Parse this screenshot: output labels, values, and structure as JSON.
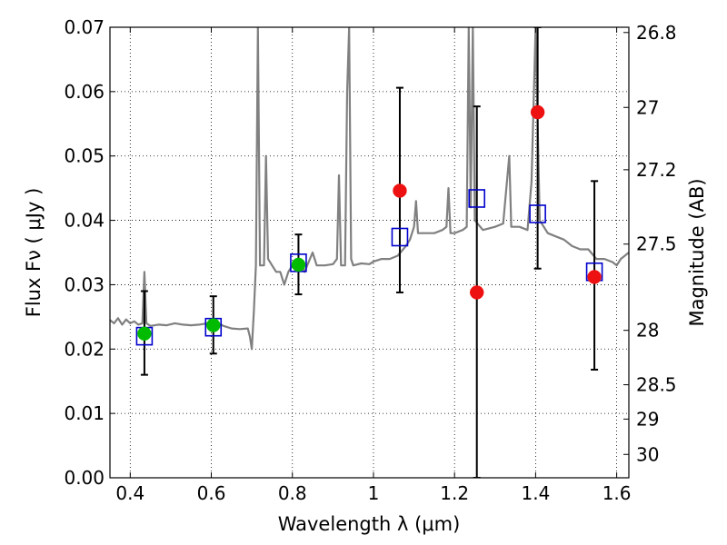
{
  "chart_data": {
    "type": "scatter",
    "title": "",
    "xlabel": "Wavelength  λ (μm)",
    "ylabel": "Flux  Fν  ( μJy )",
    "y2label": "Magnitude (AB)",
    "xlim": [
      0.35,
      1.63
    ],
    "ylim": [
      0.0,
      0.07
    ],
    "grid": true,
    "x_ticks": [
      {
        "value": 0.4,
        "label": "0.4"
      },
      {
        "value": 0.6,
        "label": "0.6"
      },
      {
        "value": 0.8,
        "label": "0.8"
      },
      {
        "value": 1.0,
        "label": "1"
      },
      {
        "value": 1.2,
        "label": "1.2"
      },
      {
        "value": 1.4,
        "label": "1.4"
      },
      {
        "value": 1.6,
        "label": "1.6"
      }
    ],
    "y_ticks": [
      {
        "value": 0.0,
        "label": "0.00"
      },
      {
        "value": 0.01,
        "label": "0.01"
      },
      {
        "value": 0.02,
        "label": "0.02"
      },
      {
        "value": 0.03,
        "label": "0.03"
      },
      {
        "value": 0.04,
        "label": "0.04"
      },
      {
        "value": 0.05,
        "label": "0.05"
      },
      {
        "value": 0.06,
        "label": "0.06"
      },
      {
        "value": 0.07,
        "label": "0.07"
      }
    ],
    "y2_ticks": [
      {
        "value": 26.8,
        "label": "26.8"
      },
      {
        "value": 27.0,
        "label": "27"
      },
      {
        "value": 27.2,
        "label": "27.2"
      },
      {
        "value": 27.5,
        "label": "27.5"
      },
      {
        "value": 28.0,
        "label": "28"
      },
      {
        "value": 28.5,
        "label": "28.5"
      },
      {
        "value": 29.0,
        "label": "29"
      },
      {
        "value": 30.0,
        "label": "30"
      }
    ],
    "series": [
      {
        "kind": "line",
        "color": "#808080",
        "points": [
          [
            0.35,
            0.0245
          ],
          [
            0.36,
            0.024
          ],
          [
            0.37,
            0.0248
          ],
          [
            0.38,
            0.0238
          ],
          [
            0.39,
            0.0246
          ],
          [
            0.4,
            0.024
          ],
          [
            0.41,
            0.0243
          ],
          [
            0.42,
            0.0238
          ],
          [
            0.43,
            0.024
          ],
          [
            0.435,
            0.032
          ],
          [
            0.44,
            0.024
          ],
          [
            0.45,
            0.0236
          ],
          [
            0.47,
            0.0238
          ],
          [
            0.49,
            0.0237
          ],
          [
            0.51,
            0.024
          ],
          [
            0.53,
            0.0238
          ],
          [
            0.55,
            0.0237
          ],
          [
            0.57,
            0.0238
          ],
          [
            0.59,
            0.024
          ],
          [
            0.61,
            0.0242
          ],
          [
            0.63,
            0.0236
          ],
          [
            0.65,
            0.0232
          ],
          [
            0.67,
            0.0231
          ],
          [
            0.69,
            0.0232
          ],
          [
            0.695,
            0.022
          ],
          [
            0.7,
            0.02
          ],
          [
            0.705,
            0.026
          ],
          [
            0.71,
            0.033
          ],
          [
            0.715,
            0.07
          ],
          [
            0.72,
            0.033
          ],
          [
            0.73,
            0.033
          ],
          [
            0.735,
            0.05
          ],
          [
            0.74,
            0.034
          ],
          [
            0.75,
            0.033
          ],
          [
            0.76,
            0.032
          ],
          [
            0.77,
            0.032
          ],
          [
            0.78,
            0.03
          ],
          [
            0.79,
            0.032
          ],
          [
            0.8,
            0.033
          ],
          [
            0.81,
            0.0333
          ],
          [
            0.82,
            0.0335
          ],
          [
            0.83,
            0.032
          ],
          [
            0.84,
            0.0335
          ],
          [
            0.85,
            0.035
          ],
          [
            0.86,
            0.033
          ],
          [
            0.88,
            0.033
          ],
          [
            0.9,
            0.0332
          ],
          [
            0.91,
            0.034
          ],
          [
            0.915,
            0.047
          ],
          [
            0.92,
            0.033
          ],
          [
            0.93,
            0.033
          ],
          [
            0.935,
            0.06
          ],
          [
            0.94,
            0.07
          ],
          [
            0.945,
            0.034
          ],
          [
            0.95,
            0.033
          ],
          [
            0.97,
            0.0333
          ],
          [
            0.99,
            0.0332
          ],
          [
            1.0,
            0.0336
          ],
          [
            1.02,
            0.034
          ],
          [
            1.04,
            0.034
          ],
          [
            1.06,
            0.0345
          ],
          [
            1.08,
            0.036
          ],
          [
            1.09,
            0.037
          ],
          [
            1.1,
            0.039
          ],
          [
            1.105,
            0.043
          ],
          [
            1.11,
            0.038
          ],
          [
            1.13,
            0.038
          ],
          [
            1.15,
            0.038
          ],
          [
            1.17,
            0.0385
          ],
          [
            1.18,
            0.039
          ],
          [
            1.185,
            0.045
          ],
          [
            1.19,
            0.038
          ],
          [
            1.2,
            0.038
          ],
          [
            1.22,
            0.0385
          ],
          [
            1.23,
            0.039
          ],
          [
            1.235,
            0.07
          ],
          [
            1.24,
            0.042
          ],
          [
            1.245,
            0.07
          ],
          [
            1.25,
            0.04
          ],
          [
            1.27,
            0.0385
          ],
          [
            1.3,
            0.039
          ],
          [
            1.32,
            0.0395
          ],
          [
            1.335,
            0.05
          ],
          [
            1.34,
            0.039
          ],
          [
            1.36,
            0.039
          ],
          [
            1.38,
            0.0385
          ],
          [
            1.39,
            0.046
          ],
          [
            1.4,
            0.07
          ],
          [
            1.41,
            0.04
          ],
          [
            1.43,
            0.038
          ],
          [
            1.45,
            0.0375
          ],
          [
            1.47,
            0.037
          ],
          [
            1.49,
            0.036
          ],
          [
            1.51,
            0.0355
          ],
          [
            1.53,
            0.0355
          ],
          [
            1.55,
            0.034
          ],
          [
            1.57,
            0.034
          ],
          [
            1.59,
            0.0335
          ],
          [
            1.6,
            0.033
          ],
          [
            1.61,
            0.034
          ],
          [
            1.63,
            0.035
          ]
        ]
      },
      {
        "kind": "errorbar",
        "color": "#000000",
        "points": [
          {
            "x": 0.435,
            "lo": 0.016,
            "hi": 0.029
          },
          {
            "x": 0.605,
            "lo": 0.0193,
            "hi": 0.0282
          },
          {
            "x": 0.815,
            "lo": 0.0285,
            "hi": 0.0378
          },
          {
            "x": 1.065,
            "lo": 0.0288,
            "hi": 0.0606
          },
          {
            "x": 1.255,
            "lo": 0.0,
            "hi": 0.0577
          },
          {
            "x": 1.405,
            "lo": 0.0325,
            "hi": 0.07
          },
          {
            "x": 1.545,
            "lo": 0.0168,
            "hi": 0.0461
          }
        ]
      },
      {
        "kind": "squares",
        "color": "#0000cc",
        "points": [
          [
            0.435,
            0.022
          ],
          [
            0.605,
            0.0234
          ],
          [
            0.815,
            0.0334
          ],
          [
            1.065,
            0.0374
          ],
          [
            1.255,
            0.0434
          ],
          [
            1.405,
            0.041
          ],
          [
            1.545,
            0.032
          ]
        ]
      },
      {
        "kind": "dots",
        "color": "#00bb00",
        "points": [
          [
            0.435,
            0.0224
          ],
          [
            0.605,
            0.0237
          ],
          [
            0.815,
            0.0331
          ]
        ]
      },
      {
        "kind": "dots",
        "color": "#ee1111",
        "points": [
          [
            1.065,
            0.0446
          ],
          [
            1.255,
            0.0288
          ],
          [
            1.405,
            0.0568
          ],
          [
            1.545,
            0.0312
          ]
        ]
      }
    ]
  }
}
